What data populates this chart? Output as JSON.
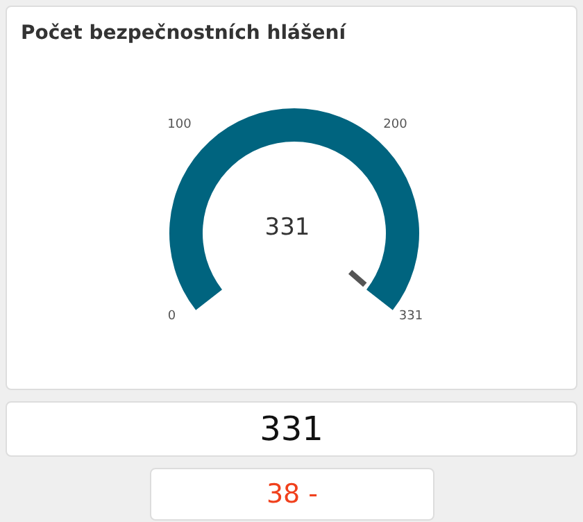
{
  "chart_data": {
    "type": "pie",
    "title": "Počet bezpečnostních hlášení",
    "categories": [
      null
    ],
    "values": [
      331
    ],
    "colors": [
      "#00647f"
    ],
    "data_labels": true,
    "annotations": [
      "0",
      "100",
      "200",
      "331",
      "331",
      "38 -"
    ]
  }
}
